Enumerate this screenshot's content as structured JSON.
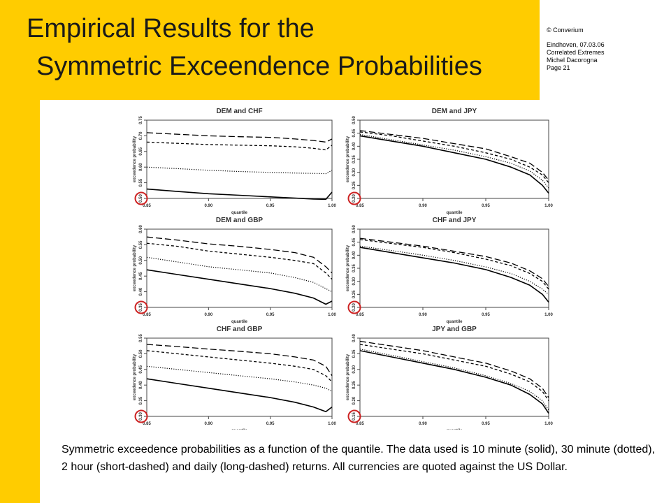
{
  "header": {
    "title_line1": "Empirical Results for the",
    "title_line2": "Symmetric Exceendence Probabilities"
  },
  "meta": {
    "copyright": "© Converium",
    "place_date": "Eindhoven, 07.03.06",
    "subject": "Correlated Extremes",
    "author": "Michel Dacorogna",
    "page": "Page 21"
  },
  "caption": "Symmetric exceedence probabilities as a function of the quantile. The data used is 10 minute (solid), 30 minute (dotted), 2 hour (short-dashed) and daily (long-dashed) returns. All currencies  are quoted against the US Dollar.",
  "colors": {
    "accent": "#ffcc00",
    "highlight_circle": "#cc2222"
  },
  "chart_data": [
    {
      "type": "line",
      "title": "DEM and CHF",
      "xlabel": "quantile",
      "ylabel": "exceedence probability",
      "xlim": [
        0.85,
        1.0
      ],
      "ylim": [
        0.5,
        0.75
      ],
      "xticks": [
        "0.85",
        "0.90",
        "0.95",
        "1.00"
      ],
      "yticks": [
        "0.50",
        "0.55",
        "0.60",
        "0.65",
        "0.70",
        "0.75"
      ],
      "x": [
        0.85,
        0.875,
        0.9,
        0.925,
        0.95,
        0.97,
        0.985,
        0.995,
        1.0
      ],
      "series": [
        {
          "style": "solid",
          "values": [
            0.53,
            0.522,
            0.515,
            0.51,
            0.505,
            0.501,
            0.498,
            0.497,
            0.52
          ]
        },
        {
          "style": "dotted",
          "values": [
            0.6,
            0.595,
            0.59,
            0.586,
            0.583,
            0.581,
            0.58,
            0.579,
            0.59
          ]
        },
        {
          "style": "short-dashed",
          "values": [
            0.68,
            0.676,
            0.672,
            0.67,
            0.668,
            0.665,
            0.66,
            0.655,
            0.67
          ]
        },
        {
          "style": "long-dashed",
          "values": [
            0.71,
            0.705,
            0.7,
            0.697,
            0.695,
            0.69,
            0.685,
            0.68,
            0.69
          ]
        }
      ]
    },
    {
      "type": "line",
      "title": "DEM and JPY",
      "xlabel": "quantile",
      "ylabel": "exceedence probability",
      "xlim": [
        0.85,
        1.0
      ],
      "ylim": [
        0.2,
        0.5
      ],
      "xticks": [
        "0.85",
        "0.90",
        "0.95",
        "1.00"
      ],
      "yticks": [
        "0.20",
        "0.25",
        "0.30",
        "0.35",
        "0.40",
        "0.45",
        "0.50"
      ],
      "x": [
        0.85,
        0.875,
        0.9,
        0.925,
        0.95,
        0.97,
        0.985,
        0.995,
        1.0
      ],
      "series": [
        {
          "style": "solid",
          "values": [
            0.44,
            0.42,
            0.4,
            0.375,
            0.35,
            0.32,
            0.29,
            0.25,
            0.22
          ]
        },
        {
          "style": "dotted",
          "values": [
            0.445,
            0.425,
            0.405,
            0.385,
            0.36,
            0.335,
            0.305,
            0.27,
            0.24
          ]
        },
        {
          "style": "short-dashed",
          "values": [
            0.455,
            0.44,
            0.42,
            0.4,
            0.375,
            0.35,
            0.32,
            0.29,
            0.26
          ]
        },
        {
          "style": "long-dashed",
          "values": [
            0.46,
            0.445,
            0.43,
            0.41,
            0.39,
            0.36,
            0.335,
            0.3,
            0.27
          ]
        }
      ]
    },
    {
      "type": "line",
      "title": "DEM and GBP",
      "xlabel": "quantile",
      "ylabel": "exceedence probability",
      "xlim": [
        0.85,
        1.0
      ],
      "ylim": [
        0.35,
        0.6
      ],
      "xticks": [
        "0.85",
        "0.90",
        "0.95",
        "1.00"
      ],
      "yticks": [
        "0.35",
        "0.40",
        "0.45",
        "0.50",
        "0.55",
        "0.60"
      ],
      "x": [
        0.85,
        0.875,
        0.9,
        0.925,
        0.95,
        0.97,
        0.985,
        0.995,
        1.0
      ],
      "series": [
        {
          "style": "solid",
          "values": [
            0.47,
            0.455,
            0.44,
            0.425,
            0.41,
            0.395,
            0.38,
            0.36,
            0.37
          ]
        },
        {
          "style": "dotted",
          "values": [
            0.51,
            0.495,
            0.48,
            0.47,
            0.46,
            0.445,
            0.43,
            0.41,
            0.4
          ]
        },
        {
          "style": "short-dashed",
          "values": [
            0.555,
            0.545,
            0.53,
            0.52,
            0.51,
            0.5,
            0.49,
            0.46,
            0.44
          ]
        },
        {
          "style": "long-dashed",
          "values": [
            0.575,
            0.565,
            0.553,
            0.545,
            0.535,
            0.525,
            0.51,
            0.48,
            0.46
          ]
        }
      ]
    },
    {
      "type": "line",
      "title": "CHF and JPY",
      "xlabel": "quantile",
      "ylabel": "exceedence probability",
      "xlim": [
        0.85,
        1.0
      ],
      "ylim": [
        0.2,
        0.5
      ],
      "xticks": [
        "0.85",
        "0.90",
        "0.95",
        "1.00"
      ],
      "yticks": [
        "0.20",
        "0.25",
        "0.30",
        "0.35",
        "0.40",
        "0.45",
        "0.50"
      ],
      "x": [
        0.85,
        0.875,
        0.9,
        0.925,
        0.95,
        0.97,
        0.985,
        0.995,
        1.0
      ],
      "series": [
        {
          "style": "solid",
          "values": [
            0.43,
            0.41,
            0.39,
            0.37,
            0.345,
            0.315,
            0.285,
            0.25,
            0.22
          ]
        },
        {
          "style": "dotted",
          "values": [
            0.435,
            0.418,
            0.4,
            0.38,
            0.355,
            0.33,
            0.3,
            0.27,
            0.25
          ]
        },
        {
          "style": "short-dashed",
          "values": [
            0.46,
            0.445,
            0.43,
            0.41,
            0.385,
            0.36,
            0.33,
            0.3,
            0.27
          ]
        },
        {
          "style": "long-dashed",
          "values": [
            0.465,
            0.45,
            0.435,
            0.415,
            0.395,
            0.37,
            0.34,
            0.31,
            0.28
          ]
        }
      ]
    },
    {
      "type": "line",
      "title": "CHF and GBP",
      "xlabel": "quantile",
      "ylabel": "exceedence probability",
      "xlim": [
        0.85,
        1.0
      ],
      "ylim": [
        0.3,
        0.55
      ],
      "xticks": [
        "0.85",
        "0.90",
        "0.95",
        "1.00"
      ],
      "yticks": [
        "0.30",
        "0.35",
        "0.40",
        "0.45",
        "0.50",
        "0.55"
      ],
      "x": [
        0.85,
        0.875,
        0.9,
        0.925,
        0.95,
        0.97,
        0.985,
        0.995,
        1.0
      ],
      "series": [
        {
          "style": "solid",
          "values": [
            0.42,
            0.405,
            0.39,
            0.375,
            0.36,
            0.345,
            0.33,
            0.315,
            0.33
          ]
        },
        {
          "style": "dotted",
          "values": [
            0.46,
            0.45,
            0.44,
            0.43,
            0.42,
            0.41,
            0.4,
            0.39,
            0.38
          ]
        },
        {
          "style": "short-dashed",
          "values": [
            0.51,
            0.5,
            0.49,
            0.48,
            0.47,
            0.46,
            0.45,
            0.43,
            0.41
          ]
        },
        {
          "style": "long-dashed",
          "values": [
            0.53,
            0.523,
            0.515,
            0.508,
            0.5,
            0.49,
            0.48,
            0.46,
            0.43
          ]
        }
      ]
    },
    {
      "type": "line",
      "title": "JPY and GBP",
      "xlabel": "quantile",
      "ylabel": "exceedence probability",
      "xlim": [
        0.85,
        1.0
      ],
      "ylim": [
        0.15,
        0.4
      ],
      "xticks": [
        "0.85",
        "0.90",
        "0.95",
        "1.00"
      ],
      "yticks": [
        "0.15",
        "0.20",
        "0.25",
        "0.30",
        "0.35",
        "0.40"
      ],
      "x": [
        0.85,
        0.875,
        0.9,
        0.925,
        0.95,
        0.97,
        0.985,
        0.995,
        1.0
      ],
      "series": [
        {
          "style": "solid",
          "values": [
            0.36,
            0.34,
            0.32,
            0.3,
            0.275,
            0.25,
            0.22,
            0.19,
            0.16
          ]
        },
        {
          "style": "dotted",
          "values": [
            0.365,
            0.345,
            0.325,
            0.305,
            0.28,
            0.255,
            0.23,
            0.2,
            0.17
          ]
        },
        {
          "style": "short-dashed",
          "values": [
            0.38,
            0.365,
            0.35,
            0.33,
            0.31,
            0.285,
            0.26,
            0.23,
            0.2
          ]
        },
        {
          "style": "long-dashed",
          "values": [
            0.39,
            0.375,
            0.36,
            0.34,
            0.32,
            0.295,
            0.27,
            0.24,
            0.21
          ]
        }
      ]
    }
  ]
}
